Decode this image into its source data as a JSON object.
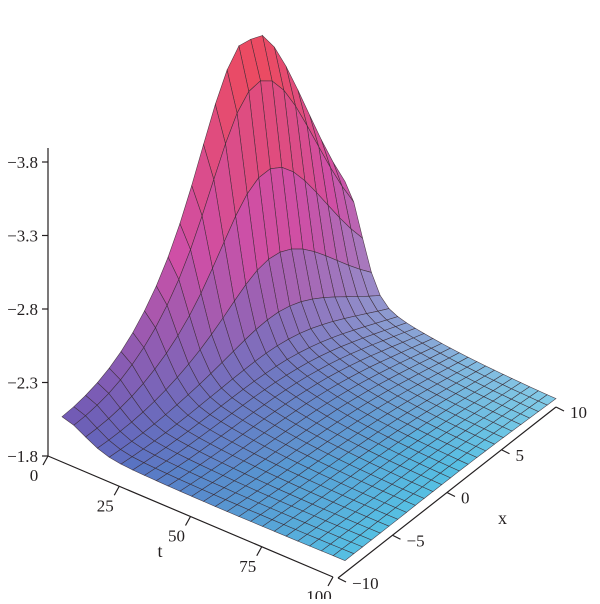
{
  "chart_data": {
    "type": "surface",
    "description_free": true,
    "z_axis": {
      "ticks": [
        "−3.8",
        "−3.3",
        "−2.8",
        "−2.3",
        "−1.8"
      ],
      "values": [
        -3.8,
        -3.3,
        -2.8,
        -2.3,
        -1.8
      ],
      "range": [
        -1.8,
        -3.9
      ],
      "label": ""
    },
    "t_axis": {
      "label": "t",
      "ticks": [
        "0",
        "25",
        "50",
        "75",
        "100"
      ],
      "values": [
        0,
        25,
        50,
        75,
        100
      ],
      "range": [
        0,
        100
      ]
    },
    "x_axis": {
      "label": "x",
      "ticks": [
        "−10",
        "−5",
        "0",
        "5",
        "10"
      ],
      "values": [
        -10,
        -5,
        0,
        5,
        10
      ],
      "range": [
        -10,
        10
      ]
    },
    "surface": {
      "peak_value": -3.95,
      "base_value": -1.8,
      "grid_t": 24,
      "grid_x": 24,
      "colors": {
        "low_near": "#55d9ee",
        "low_far": "#5a5cb8",
        "mid": "#cf4fa6",
        "high": "#ef4a5a",
        "edge": "#3a2a33"
      }
    }
  }
}
